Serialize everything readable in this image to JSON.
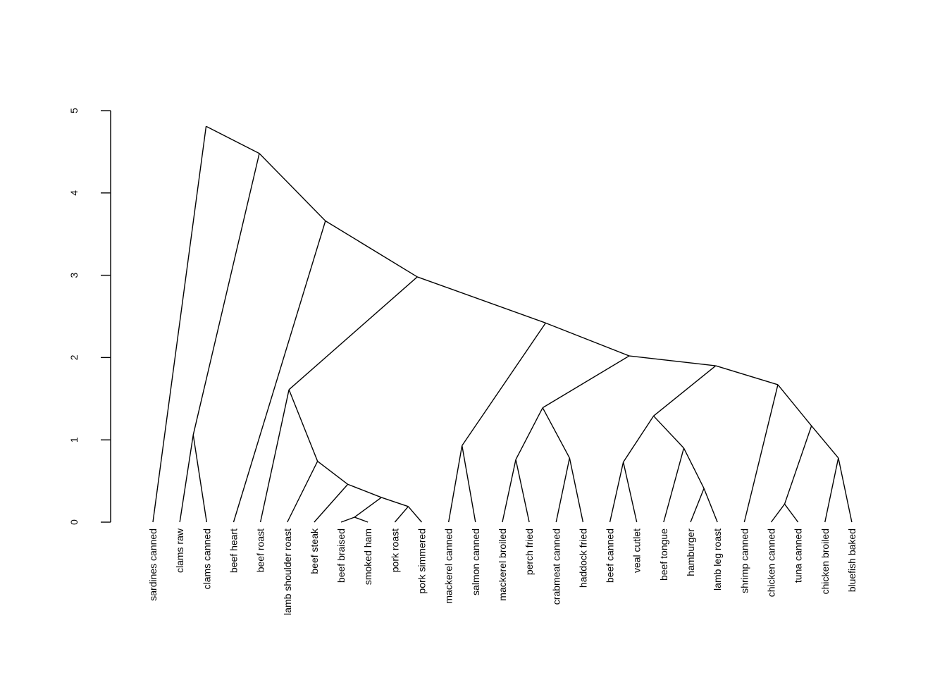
{
  "chart_data": {
    "type": "dendrogram",
    "title": "",
    "xlabel": "",
    "ylabel": "",
    "ylim": [
      0,
      5
    ],
    "yticks": [
      0,
      1,
      2,
      3,
      4,
      5
    ],
    "leaves": [
      "sardines canned",
      "clams raw",
      "clams canned",
      "beef heart",
      "beef roast",
      "lamb shoulder roast",
      "beef steak",
      "beef braised",
      "smoked ham",
      "pork roast",
      "pork simmered",
      "mackerel canned",
      "salmon canned",
      "mackerel broiled",
      "perch fried",
      "crabmeat canned",
      "haddock fried",
      "beef canned",
      "veal cutlet",
      "beef tongue",
      "hamburger",
      "lamb leg roast",
      "shrimp canned",
      "chicken canned",
      "tuna canned",
      "chicken broiled",
      "bluefish baked"
    ],
    "merges": [
      {
        "id": "smoked_ham_braised",
        "children": [
          "beef braised",
          "smoked ham"
        ],
        "height": 0.06
      },
      {
        "id": "pork",
        "children": [
          "pork roast",
          "pork simmered"
        ],
        "height": 0.19
      },
      {
        "id": "chicken_tuna",
        "children": [
          "chicken canned",
          "tuna canned"
        ],
        "height": 0.22
      },
      {
        "id": "braised_ham_pork",
        "children": [
          "smoked_ham_braised",
          "pork"
        ],
        "height": 0.3
      },
      {
        "id": "burger_lamb",
        "children": [
          "hamburger",
          "lamb leg roast"
        ],
        "height": 0.41
      },
      {
        "id": "steak_group",
        "children": [
          "beef steak",
          "braised_ham_pork"
        ],
        "height": 0.46
      },
      {
        "id": "steak_group2",
        "children": [
          "lamb shoulder roast",
          "steak_group"
        ],
        "height": 0.74
      },
      {
        "id": "beef_veal",
        "children": [
          "beef canned",
          "veal cutlet"
        ],
        "height": 0.73
      },
      {
        "id": "mackerel_perch",
        "children": [
          "mackerel broiled",
          "perch fried"
        ],
        "height": 0.76
      },
      {
        "id": "crab_haddock",
        "children": [
          "crabmeat canned",
          "haddock fried"
        ],
        "height": 0.78
      },
      {
        "id": "chicken_bluefish",
        "children": [
          "chicken broiled",
          "bluefish baked"
        ],
        "height": 0.78
      },
      {
        "id": "tongue_group",
        "children": [
          "beef tongue",
          "burger_lamb"
        ],
        "height": 0.9
      },
      {
        "id": "canned_fish",
        "children": [
          "mackerel canned",
          "salmon canned"
        ],
        "height": 0.93
      },
      {
        "id": "clams",
        "children": [
          "clams raw",
          "clams canned"
        ],
        "height": 1.06
      },
      {
        "id": "poultry_tuna",
        "children": [
          "chicken_tuna",
          "chicken_bluefish"
        ],
        "height": 1.17
      },
      {
        "id": "white_fish",
        "children": [
          "mackerel_perch",
          "crab_haddock"
        ],
        "height": 1.39
      },
      {
        "id": "red_meat2",
        "children": [
          "beef_veal",
          "tongue_group"
        ],
        "height": 1.29
      },
      {
        "id": "red_meat1",
        "children": [
          "beef roast",
          "steak_group2"
        ],
        "height": 1.61
      },
      {
        "id": "shrimp_poultry",
        "children": [
          "shrimp canned",
          "poultry_tuna"
        ],
        "height": 1.67
      },
      {
        "id": "mixed_b",
        "children": [
          "red_meat2",
          "shrimp_poultry"
        ],
        "height": 1.9
      },
      {
        "id": "mixed_a",
        "children": [
          "white_fish",
          "mixed_b"
        ],
        "height": 2.02
      },
      {
        "id": "fish_mixed",
        "children": [
          "canned_fish",
          "mixed_a"
        ],
        "height": 2.42
      },
      {
        "id": "meat_fish",
        "children": [
          "red_meat1",
          "fish_mixed"
        ],
        "height": 2.98
      },
      {
        "id": "heart_group",
        "children": [
          "beef heart",
          "meat_fish"
        ],
        "height": 3.66
      },
      {
        "id": "clams_group",
        "children": [
          "clams",
          "heart_group"
        ],
        "height": 4.48
      },
      {
        "id": "root",
        "children": [
          "sardines canned",
          "clams_group"
        ],
        "height": 4.81
      }
    ]
  }
}
